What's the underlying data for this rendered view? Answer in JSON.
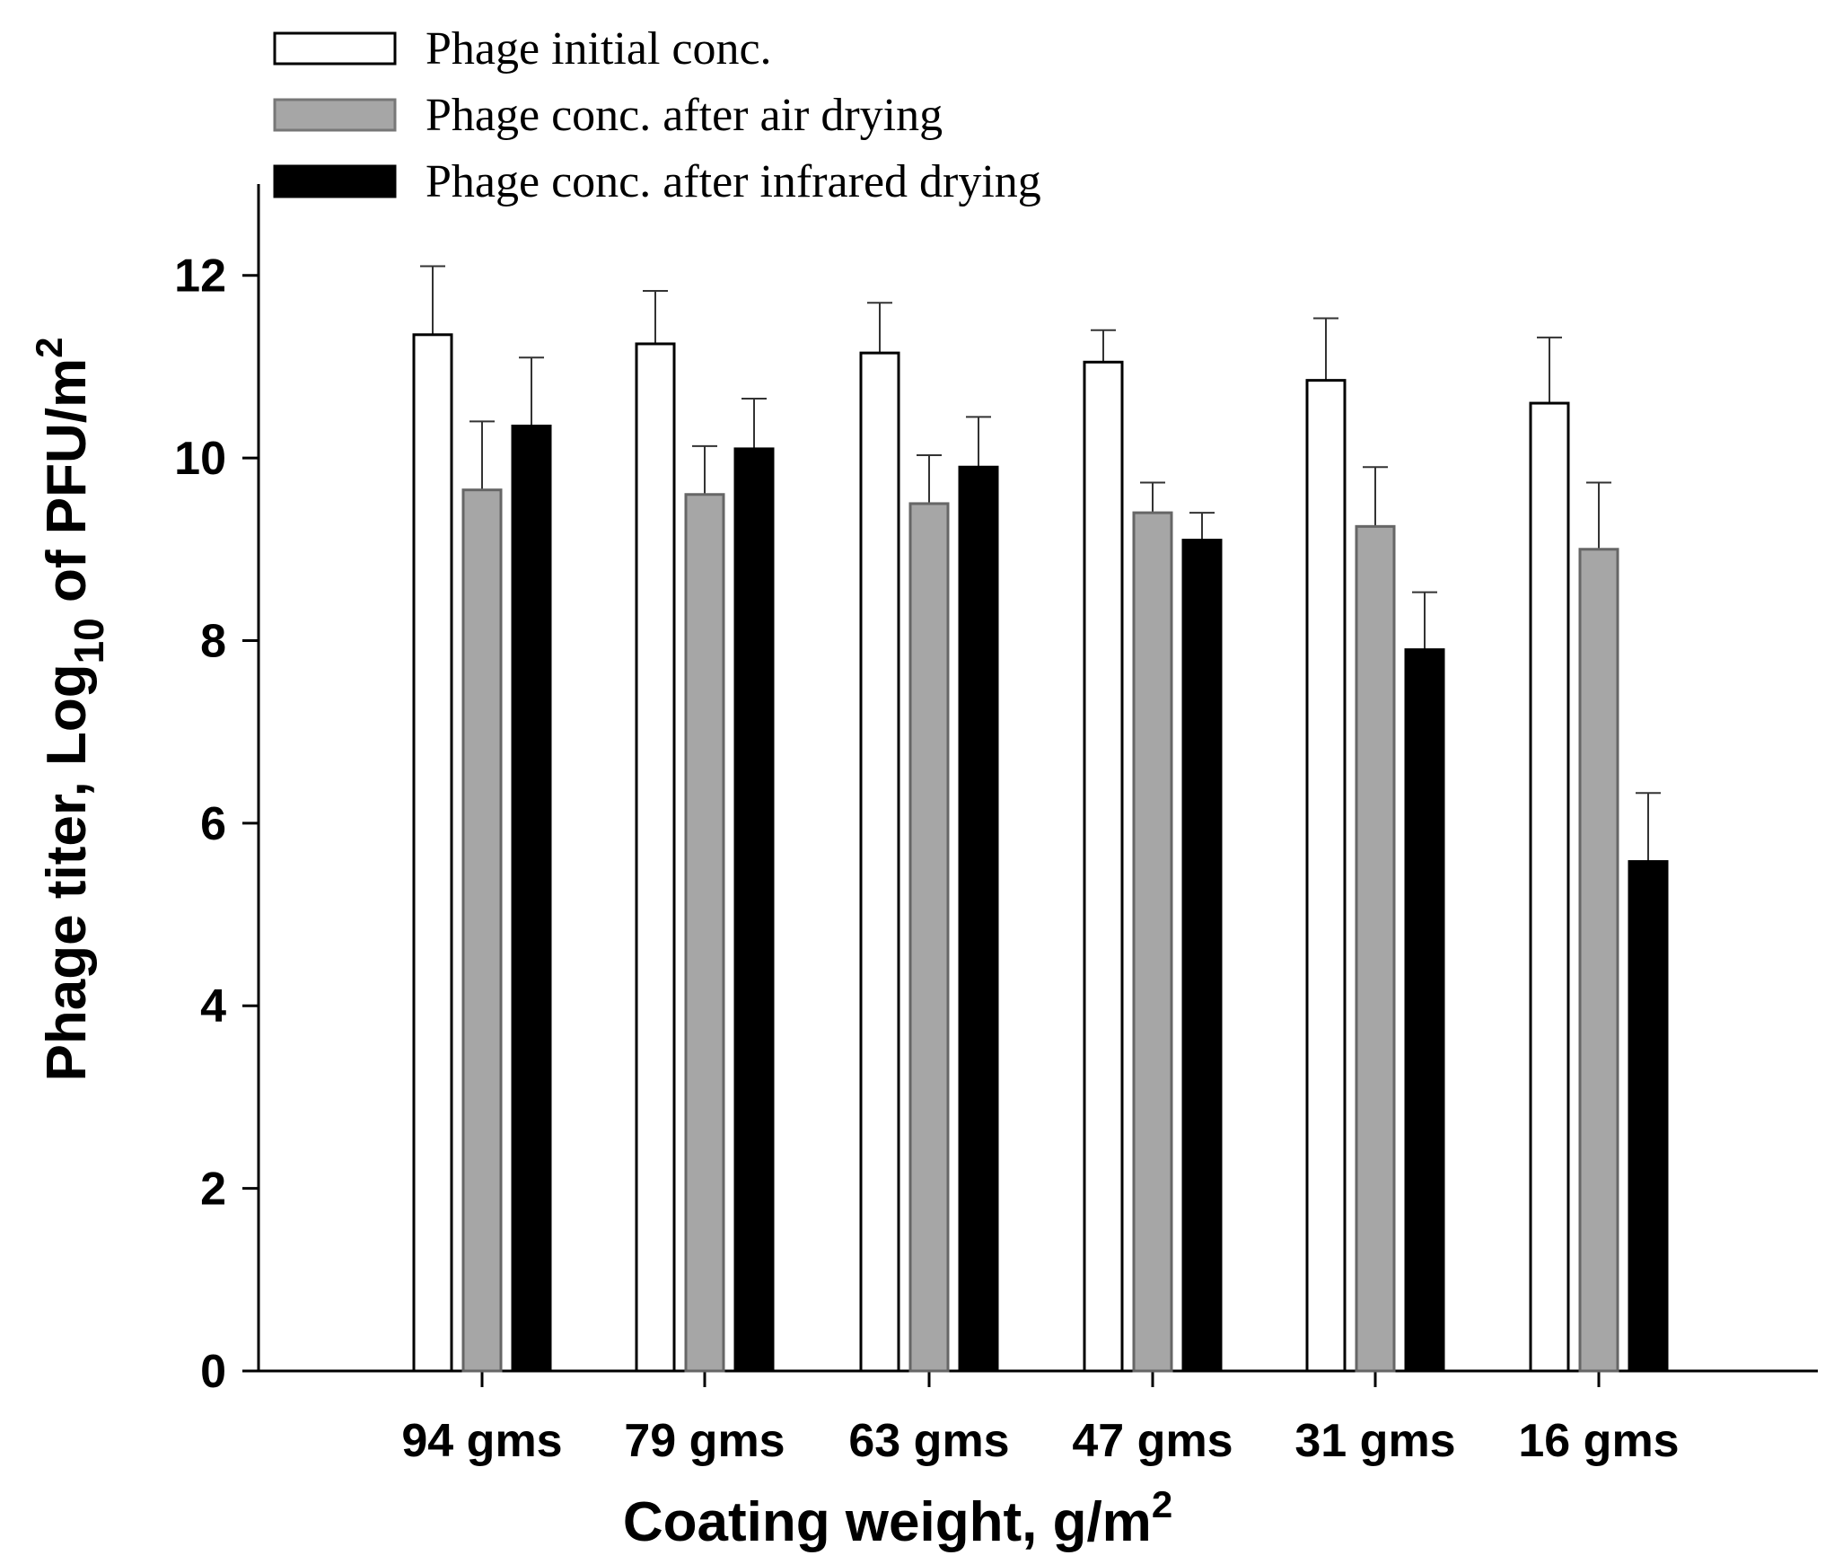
{
  "chart_data": {
    "type": "bar",
    "title": "",
    "xlabel": {
      "main": "Coating weight, g/m",
      "sup": "2"
    },
    "ylabel": {
      "main": "Phage titer, Log",
      "sub": "10",
      "rest": " of PFU/m",
      "sup": "2"
    },
    "ylim": [
      0,
      13
    ],
    "yticks": [
      0,
      2,
      4,
      6,
      8,
      10,
      12
    ],
    "grid": false,
    "legend_position": "top-left",
    "categories": [
      "94 gms",
      "79 gms",
      "63 gms",
      "47 gms",
      "31 gms",
      "16 gms"
    ],
    "series": [
      {
        "name": "Phage initial conc.",
        "color": "#ffffff",
        "values": [
          11.35,
          11.25,
          11.15,
          11.05,
          10.85,
          10.6
        ],
        "errors": [
          0.75,
          0.58,
          0.55,
          0.35,
          0.68,
          0.72
        ]
      },
      {
        "name": "Phage conc. after air drying",
        "color": "#a6a6a6",
        "values": [
          9.65,
          9.6,
          9.5,
          9.4,
          9.25,
          9.0
        ],
        "errors": [
          0.75,
          0.53,
          0.53,
          0.33,
          0.65,
          0.73
        ]
      },
      {
        "name": "Phage conc. after infrared drying",
        "color": "#000000",
        "values": [
          10.35,
          10.1,
          9.9,
          9.1,
          7.9,
          5.58
        ],
        "errors": [
          0.75,
          0.55,
          0.55,
          0.3,
          0.63,
          0.75
        ]
      }
    ]
  }
}
